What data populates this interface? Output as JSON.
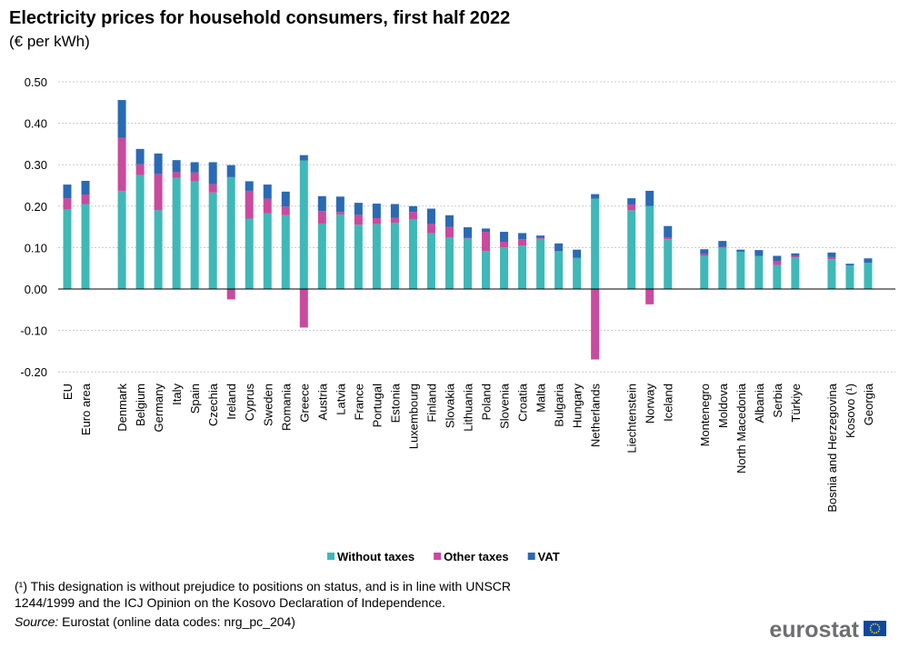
{
  "chart_data": {
    "type": "stacked_bar",
    "title": "Electricity prices for household consumers, first half 2022",
    "subtitle": "(€ per kWh)",
    "categories": [
      "EU",
      "Euro area",
      null,
      "Denmark",
      "Belgium",
      "Germany",
      "Italy",
      "Spain",
      "Czechia",
      "Ireland",
      "Cyprus",
      "Sweden",
      "Romania",
      "Greece",
      "Austria",
      "Latvia",
      "France",
      "Portugal",
      "Estonia",
      "Luxembourg",
      "Finland",
      "Slovakia",
      "Lithuania",
      "Poland",
      "Slovenia",
      "Croatia",
      "Malta",
      "Bulgaria",
      "Hungary",
      "Netherlands",
      null,
      "Liechtenstein",
      "Norway",
      "Iceland",
      null,
      "Montenegro",
      "Moldova",
      "North Macedonia",
      "Albania",
      "Serbia",
      "Türkiye",
      null,
      "Bosnia and Herzegovina",
      "Kosovo (¹)",
      "Georgia",
      null
    ],
    "series": [
      {
        "name": "Without taxes",
        "color": "#3fb8b8",
        "values": [
          0.193,
          0.205,
          null,
          0.237,
          0.275,
          0.19,
          0.268,
          0.26,
          0.233,
          0.27,
          0.17,
          0.183,
          0.178,
          0.31,
          0.158,
          0.18,
          0.155,
          0.157,
          0.16,
          0.168,
          0.135,
          0.125,
          0.122,
          0.092,
          0.101,
          0.105,
          0.121,
          0.091,
          0.075,
          0.218,
          null,
          0.19,
          0.2,
          0.12,
          null,
          0.08,
          0.1,
          0.09,
          0.08,
          0.058,
          0.076,
          null,
          0.072,
          0.057,
          0.063,
          null
        ]
      },
      {
        "name": "Other taxes",
        "color": "#c94a9e",
        "values": [
          0.026,
          0.023,
          null,
          0.128,
          0.026,
          0.087,
          0.014,
          0.021,
          0.02,
          -0.025,
          0.067,
          0.035,
          0.021,
          -0.093,
          0.03,
          0.006,
          0.024,
          0.014,
          0.012,
          0.018,
          0.022,
          0.025,
          0.001,
          0.046,
          0.013,
          0.015,
          0.002,
          0.001,
          0.0,
          -0.17,
          null,
          0.014,
          -0.037,
          0.005,
          null,
          0.004,
          0.002,
          0.0,
          0.0,
          0.01,
          0.004,
          null,
          0.005,
          0.0,
          0.0,
          null
        ]
      },
      {
        "name": "VAT",
        "color": "#2a6ab4",
        "values": [
          0.033,
          0.033,
          null,
          0.091,
          0.037,
          0.05,
          0.029,
          0.025,
          0.053,
          0.029,
          0.023,
          0.034,
          0.036,
          0.013,
          0.036,
          0.037,
          0.029,
          0.035,
          0.033,
          0.014,
          0.037,
          0.028,
          0.026,
          0.008,
          0.024,
          0.015,
          0.006,
          0.018,
          0.02,
          0.011,
          null,
          0.015,
          0.037,
          0.027,
          null,
          0.012,
          0.014,
          0.005,
          0.014,
          0.012,
          0.006,
          null,
          0.011,
          0.004,
          0.011,
          null
        ]
      }
    ],
    "ylim": [
      -0.2,
      0.5
    ],
    "yticks": [
      {
        "value": -0.2,
        "label": "-0.20"
      },
      {
        "value": -0.1,
        "label": "-0.10"
      },
      {
        "value": 0,
        "label": "0.00"
      },
      {
        "value": 0.1,
        "label": "0.10"
      },
      {
        "value": 0.2,
        "label": "0.20"
      },
      {
        "value": 0.3,
        "label": "0.30"
      },
      {
        "value": 0.4,
        "label": "0.40"
      },
      {
        "value": 0.5,
        "label": "0.50"
      }
    ],
    "grid": true,
    "legend": "bottom",
    "footnote": "(¹) This designation is without prejudice to positions on status, and is in line with UNSCR 1244/1999 and the ICJ Opinion on the Kosovo Declaration of Independence.",
    "source_label": "Source:",
    "source_text": "Eurostat (online data codes: nrg_pc_204)",
    "logo": "eurostat"
  }
}
